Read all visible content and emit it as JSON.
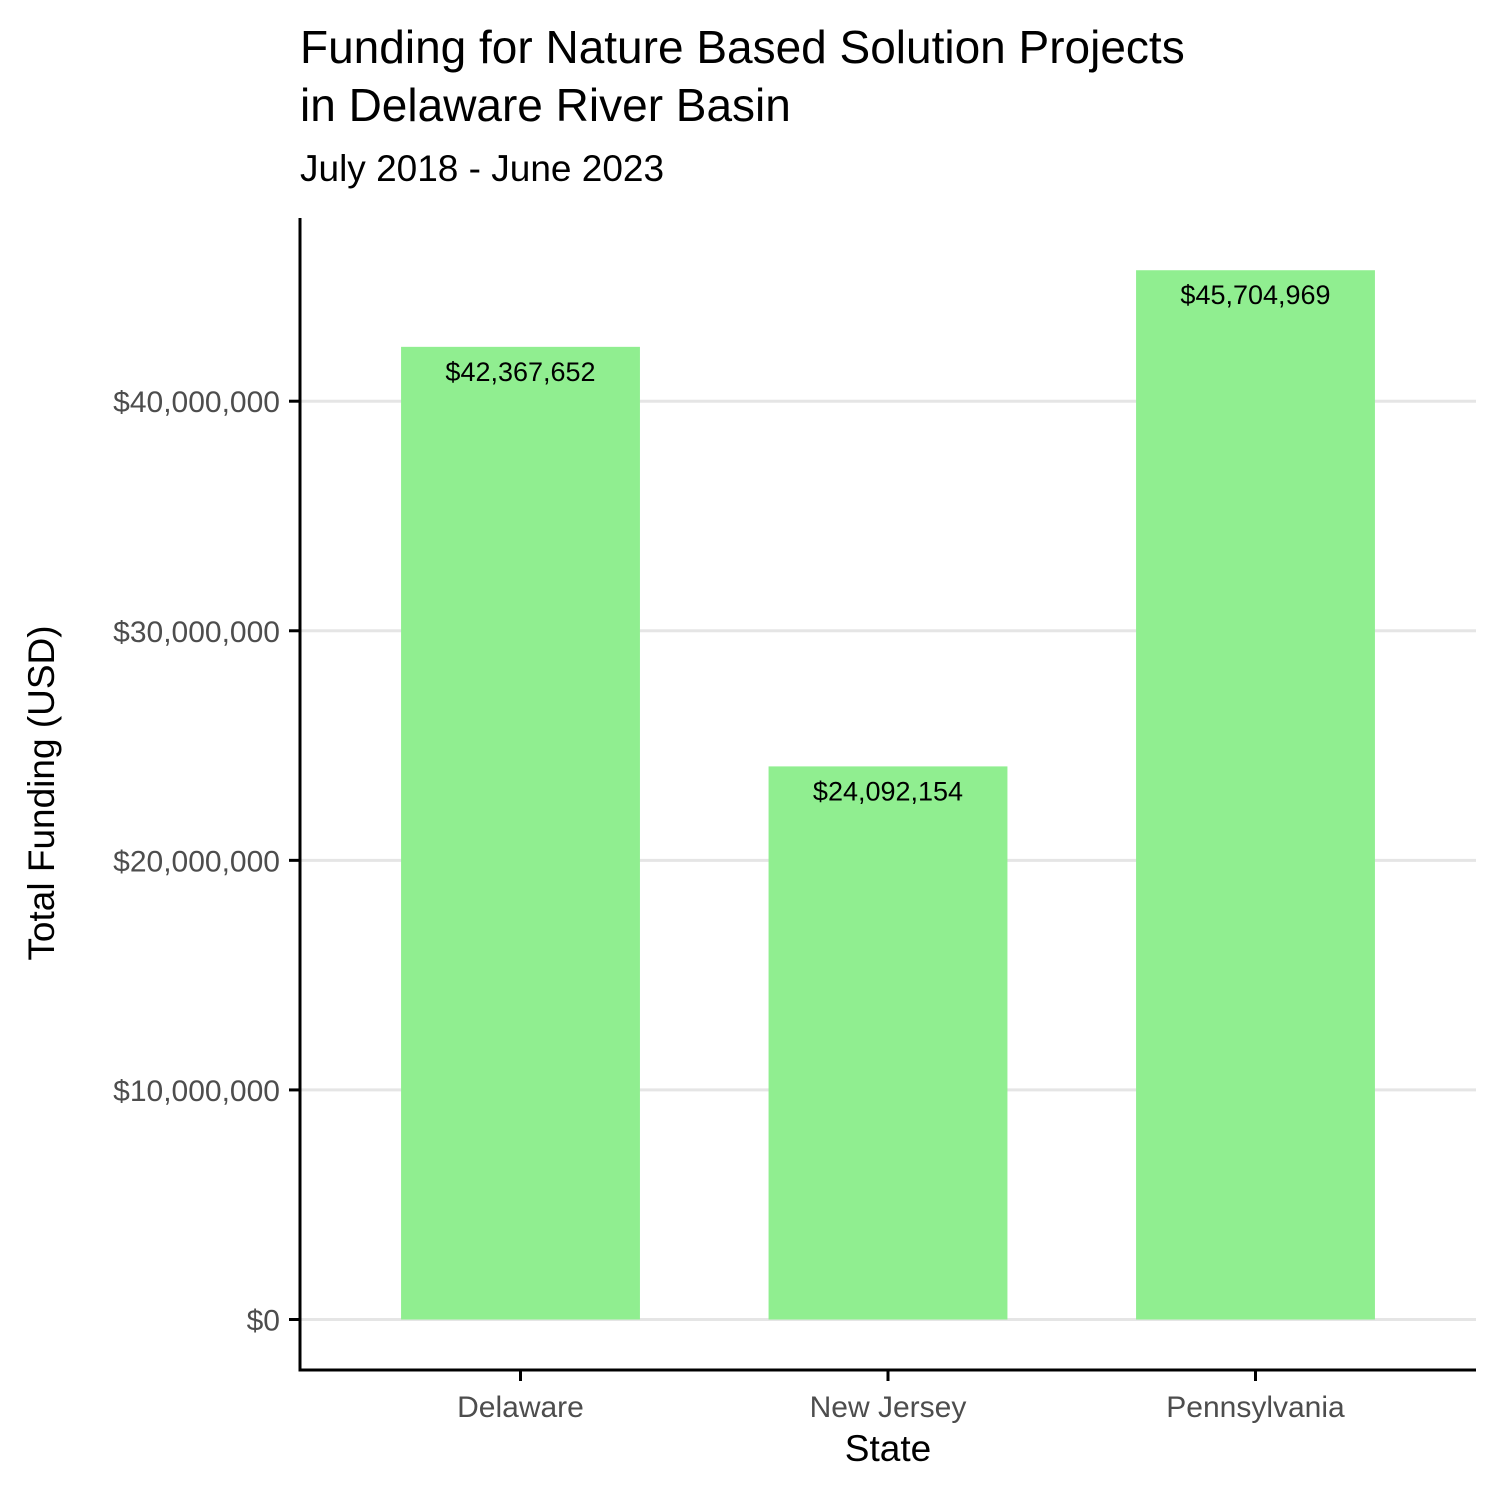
{
  "chart_data": {
    "type": "bar",
    "title": "Funding for Nature Based Solution Projects\nin Delaware River Basin",
    "subtitle": "July 2018 - June 2023",
    "xlabel": "State",
    "ylabel": "Total Funding (USD)",
    "categories": [
      "Delaware",
      "New Jersey",
      "Pennsylvania"
    ],
    "values": [
      42367652,
      24092154,
      45704969
    ],
    "data_labels": [
      "$42,367,652",
      "$24,092,154",
      "$45,704,969"
    ],
    "y_ticks": [
      0,
      10000000,
      20000000,
      30000000,
      40000000
    ],
    "y_tick_labels": [
      "$0",
      "$10,000,000",
      "$20,000,000",
      "$30,000,000",
      "$40,000,000"
    ],
    "ylim": [
      -2200000,
      47980000
    ],
    "grid": "horizontal major",
    "legend": "none",
    "colors": {
      "bar": "#90EE90",
      "grid": "#E5E5E5",
      "axis": "#000000",
      "tick_label": "#4D4D4D"
    }
  }
}
